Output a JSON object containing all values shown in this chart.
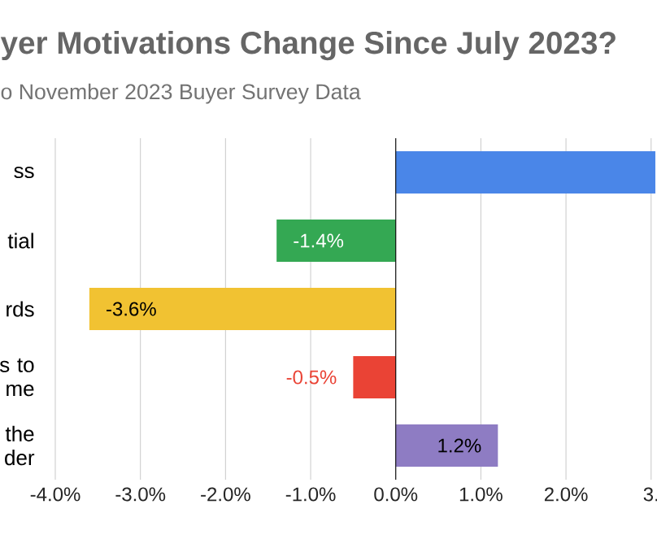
{
  "chart_data": {
    "type": "bar",
    "orientation": "horizontal",
    "title": "yer Motivations Change Since July 2023?",
    "subtitle": "o November 2023 Buyer Survey Data",
    "categories": [
      "ss",
      "tial",
      "rds",
      "s to me",
      "the der"
    ],
    "values": [
      3.05,
      -1.4,
      -3.6,
      -0.5,
      1.2
    ],
    "value_labels": [
      null,
      "-1.4%",
      "-3.6%",
      "-0.5%",
      "1.2%"
    ],
    "colors": [
      "#4a86e8",
      "#34a853",
      "#f1c232",
      "#ea4335",
      "#8e7cc3"
    ],
    "xlim": [
      -4,
      3.05
    ],
    "xticks": [
      {
        "value": -4,
        "label": "-4.0%"
      },
      {
        "value": -3,
        "label": "-3.0%"
      },
      {
        "value": -2,
        "label": "-2.0%"
      },
      {
        "value": -1,
        "label": "-1.0%"
      },
      {
        "value": 0,
        "label": "0.0%"
      },
      {
        "value": 1,
        "label": "1.0%"
      },
      {
        "value": 2,
        "label": "2.0%"
      },
      {
        "value": 3,
        "label": "3."
      }
    ],
    "grid": "x",
    "legend": false
  }
}
